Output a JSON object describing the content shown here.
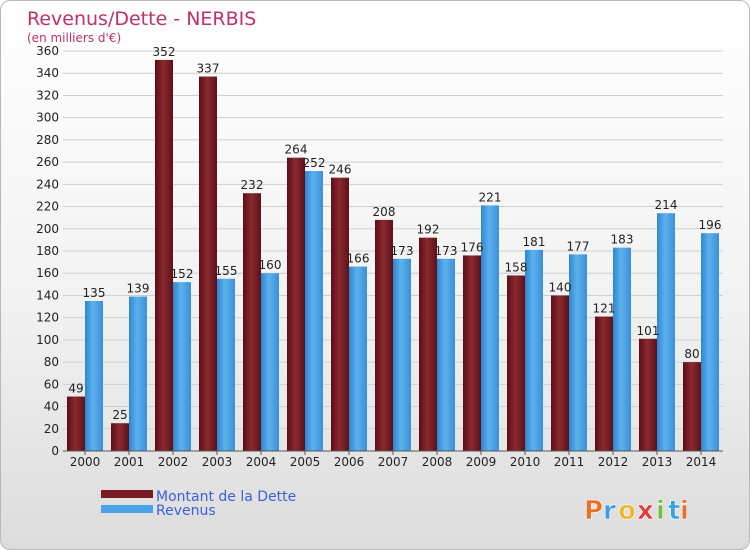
{
  "chart_data": {
    "type": "bar",
    "title": "Revenus/Dette - NERBIS",
    "subtitle": "(en milliers d'€)",
    "categories": [
      "2000",
      "2001",
      "2002",
      "2003",
      "2004",
      "2005",
      "2006",
      "2007",
      "2008",
      "2009",
      "2010",
      "2011",
      "2012",
      "2013",
      "2014"
    ],
    "series": [
      {
        "name": "Montant de la Dette",
        "color": "#7a1a22",
        "values": [
          49,
          25,
          352,
          337,
          232,
          264,
          246,
          208,
          192,
          176,
          158,
          140,
          121,
          101,
          80
        ]
      },
      {
        "name": "Revenus",
        "color": "#4aa3e6",
        "values": [
          135,
          139,
          152,
          155,
          160,
          252,
          166,
          173,
          173,
          221,
          181,
          177,
          183,
          214,
          196
        ]
      }
    ],
    "ylim": [
      0,
      360
    ],
    "yticks": [
      0,
      20,
      40,
      60,
      80,
      100,
      120,
      140,
      160,
      180,
      200,
      220,
      240,
      260,
      280,
      300,
      320,
      340,
      360
    ],
    "grid": true,
    "legend_position": "bottom-left"
  },
  "logo": {
    "text": "Proxiti",
    "letters": [
      "P",
      "r",
      "o",
      "x",
      "i",
      "t",
      "i"
    ]
  }
}
